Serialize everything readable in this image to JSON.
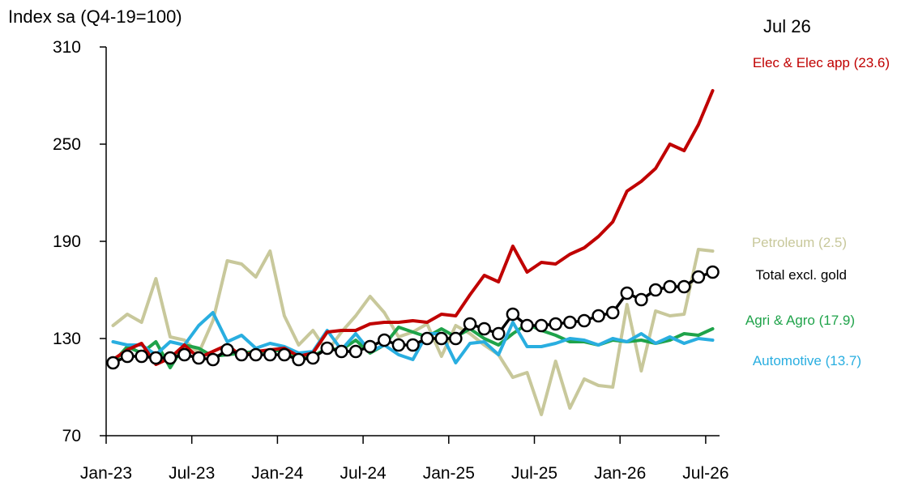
{
  "y_axis_title": "Index sa (Q4-19=100)",
  "period_label": "Jul 26",
  "chart_data": {
    "type": "line",
    "ylim": [
      70,
      310
    ],
    "yticks": [
      70,
      130,
      190,
      250,
      310
    ],
    "xticks": [
      {
        "i": 0,
        "label": "Jan-23"
      },
      {
        "i": 6,
        "label": "Jul-23"
      },
      {
        "i": 12,
        "label": "Jan-24"
      },
      {
        "i": 18,
        "label": "Jul-24"
      },
      {
        "i": 24,
        "label": "Jan-25"
      },
      {
        "i": 30,
        "label": "Jul-25"
      },
      {
        "i": 36,
        "label": "Jan-26"
      },
      {
        "i": 42,
        "label": "Jul-26"
      }
    ],
    "grid": false,
    "legend": "inline-right",
    "series": [
      {
        "name": "Petroleum (2.5)",
        "color": "#c8c89b",
        "marker": false,
        "values": [
          138,
          145,
          140,
          167,
          131,
          129,
          121,
          141,
          178,
          176,
          168,
          184,
          144,
          126,
          135,
          122,
          134,
          144,
          156,
          146,
          131,
          134,
          139,
          119,
          138,
          133,
          126,
          120,
          106,
          109,
          83,
          116,
          87,
          105,
          101,
          100,
          151,
          110,
          147,
          144,
          145,
          185,
          184
        ]
      },
      {
        "name": "Agri & Agro (17.9)",
        "color": "#1fa34a",
        "marker": false,
        "values": [
          115,
          125,
          121,
          128,
          112,
          126,
          124,
          119,
          120,
          121,
          122,
          122,
          123,
          118,
          119,
          124,
          123,
          129,
          121,
          126,
          137,
          134,
          131,
          136,
          131,
          136,
          130,
          126,
          133,
          139,
          135,
          132,
          128,
          128,
          126,
          129,
          128,
          129,
          127,
          129,
          133,
          132,
          136
        ]
      },
      {
        "name": "Automotive (13.7)",
        "color": "#29aee0",
        "marker": false,
        "values": [
          128,
          126,
          126,
          120,
          128,
          126,
          138,
          146,
          128,
          132,
          124,
          127,
          125,
          121,
          122,
          135,
          123,
          133,
          122,
          126,
          120,
          117,
          133,
          133,
          115,
          127,
          128,
          120,
          140,
          125,
          125,
          127,
          130,
          129,
          126,
          130,
          128,
          133,
          127,
          131,
          127,
          130,
          129
        ]
      },
      {
        "name": "Elec & Elec app (23.6)",
        "color": "#c00000",
        "marker": false,
        "values": [
          117,
          123,
          127,
          114,
          118,
          126,
          118,
          122,
          126,
          119,
          122,
          123,
          124,
          119,
          121,
          134,
          135,
          135,
          139,
          140,
          140,
          141,
          140,
          145,
          144,
          157,
          169,
          165,
          187,
          171,
          177,
          176,
          182,
          186,
          193,
          202,
          221,
          227,
          235,
          250,
          246,
          262,
          283
        ]
      },
      {
        "name": "Total excl. gold",
        "color": "#000000",
        "marker": true,
        "values": [
          115,
          119,
          119,
          118,
          118,
          120,
          118,
          117,
          123,
          120,
          120,
          120,
          120,
          117,
          118,
          124,
          122,
          122,
          125,
          129,
          126,
          126,
          130,
          130,
          130,
          139,
          136,
          133,
          145,
          138,
          138,
          139,
          140,
          141,
          144,
          146,
          158,
          154,
          160,
          162,
          162,
          168,
          171
        ]
      }
    ]
  }
}
